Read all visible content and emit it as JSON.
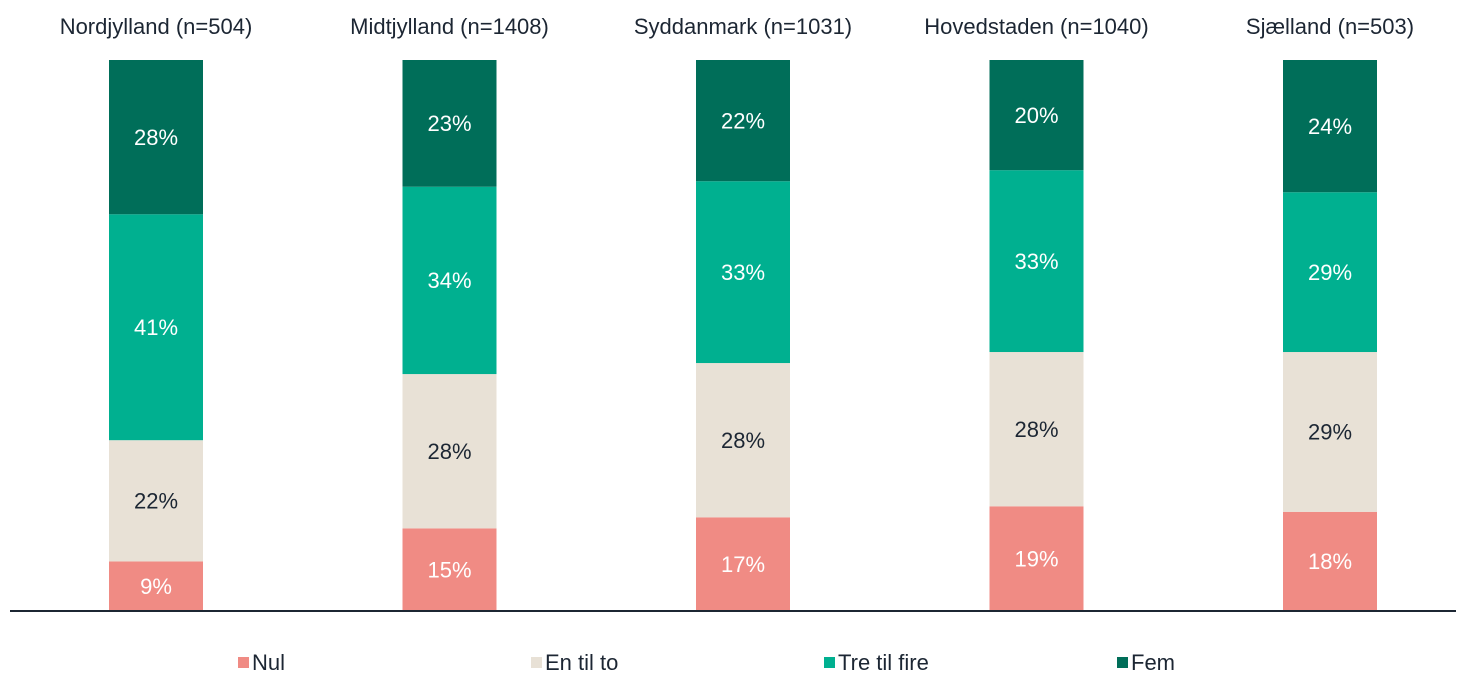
{
  "chart_data": {
    "type": "stacked_bar",
    "categories": [
      "Nordjylland (n=504)",
      "Midtjylland (n=1408)",
      "Syddanmark (n=1031)",
      "Hovedstaden (n=1040)",
      "Sjælland (n=503)"
    ],
    "series": [
      {
        "name": "Nul",
        "color": "#f08b84",
        "label_color": "#ffffff",
        "values": [
          9,
          15,
          17,
          19,
          18
        ],
        "value_labels": [
          "9%",
          "15%",
          "17%",
          "19%",
          "18%"
        ]
      },
      {
        "name": "En til to",
        "color": "#e8e1d6",
        "label_color": "#1c2633",
        "values": [
          22,
          28,
          28,
          28,
          29
        ],
        "value_labels": [
          "22%",
          "28%",
          "28%",
          "28%",
          "29%"
        ]
      },
      {
        "name": "Tre til fire",
        "color": "#00b090",
        "label_color": "#ffffff",
        "values": [
          41,
          34,
          33,
          33,
          29
        ],
        "value_labels": [
          "41%",
          "34%",
          "33%",
          "33%",
          "29%"
        ]
      },
      {
        "name": "Fem",
        "color": "#006e59",
        "label_color": "#ffffff",
        "values": [
          28,
          23,
          22,
          20,
          24
        ],
        "value_labels": [
          "28%",
          "23%",
          "22%",
          "20%",
          "24%"
        ]
      }
    ],
    "legend": "bottom"
  }
}
